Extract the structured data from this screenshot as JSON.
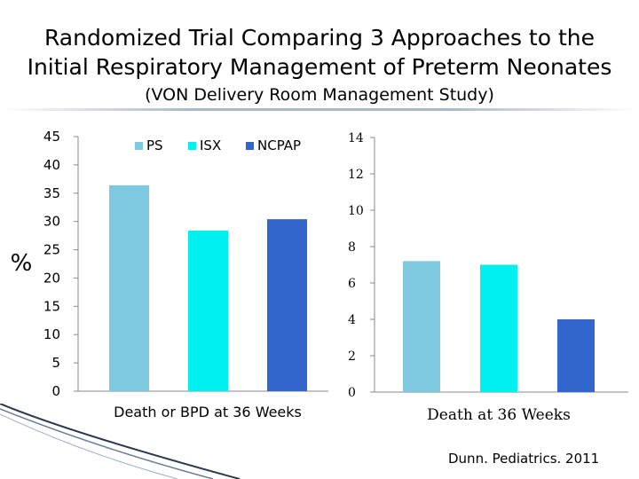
{
  "title": {
    "line1": "Randomized Trial Comparing 3 Approaches to the",
    "line2": "Initial Respiratory Management of Preterm Neonates",
    "line3": "(VON Delivery Room Management Study)"
  },
  "citation": "Dunn. Pediatrics. 2011",
  "colors": {
    "PS": "#7ec8e0",
    "ISX": "#00f0f0",
    "NCPAP": "#3366cc",
    "axis": "#888888"
  },
  "chart_data": [
    {
      "type": "bar",
      "title": "",
      "ylabel": "%",
      "xlabel": "",
      "categories": [
        "Death or BPD at 36 Weeks"
      ],
      "series": [
        {
          "name": "PS",
          "values": [
            36.4
          ]
        },
        {
          "name": "ISX",
          "values": [
            28.4
          ]
        },
        {
          "name": "NCPAP",
          "values": [
            30.4
          ]
        }
      ],
      "ylim": [
        0,
        45
      ],
      "yticks": [
        "0",
        "5",
        "10",
        "15",
        "20",
        "25",
        "30",
        "35",
        "40",
        "45"
      ],
      "legend": "top",
      "grid": false
    },
    {
      "type": "bar",
      "title": "",
      "ylabel": "",
      "xlabel": "",
      "categories": [
        "Death at 36 Weeks"
      ],
      "series": [
        {
          "values": [
            7.2
          ]
        },
        {
          "values": [
            7.0
          ]
        },
        {
          "values": [
            4.0
          ]
        }
      ],
      "ylim": [
        0,
        14
      ],
      "yticks": [
        "0",
        "2",
        "4",
        "6",
        "8",
        "10",
        "12",
        "14"
      ],
      "legend": "none",
      "grid": false
    }
  ]
}
